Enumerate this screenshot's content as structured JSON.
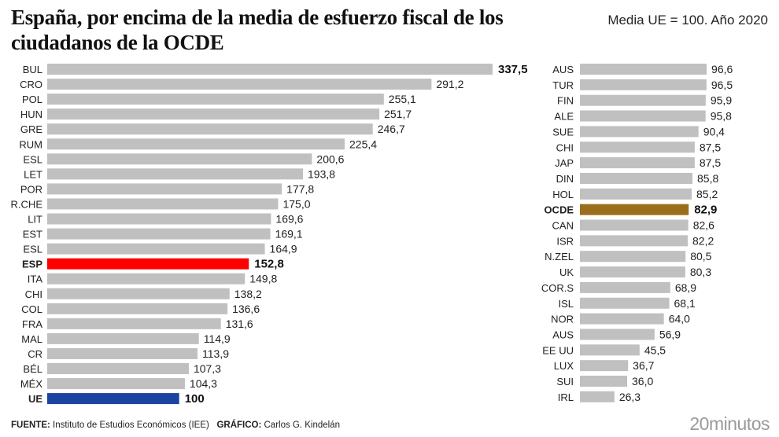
{
  "header": {
    "title": "España, por encima de la media de esfuerzo fiscal de los ciudadanos de la OCDE",
    "subtitle": "Media UE = 100. Año 2020"
  },
  "footer": {
    "source_label": "FUENTE:",
    "source_text": "Instituto de Estudios Económicos (IEE)",
    "graphic_label": "GRÁFICO:",
    "graphic_text": "Carlos G. Kindelán",
    "brand": "20minutos"
  },
  "colors": {
    "default_bar": "#c0c0c0",
    "highlight_esp": "#ff0000",
    "highlight_ue": "#1a44a0",
    "highlight_ocde": "#9a6e1a"
  },
  "chart_data": {
    "type": "bar",
    "orientation": "horizontal",
    "title": "España, por encima de la media de esfuerzo fiscal de los ciudadanos de la OCDE",
    "subtitle": "Media UE = 100. Año 2020",
    "xlabel": "",
    "ylabel": "",
    "xlim": [
      0,
      337.5
    ],
    "grid": false,
    "panels": [
      {
        "name": "left",
        "categories": [
          "BUL",
          "CRO",
          "POL",
          "HUN",
          "GRE",
          "RUM",
          "ESL",
          "LET",
          "POR",
          "R.CHE",
          "LIT",
          "EST",
          "ESL",
          "ESP",
          "ITA",
          "CHI",
          "COL",
          "FRA",
          "MAL",
          "CR",
          "BÉL",
          "MÉX",
          "UE"
        ],
        "values": [
          337.5,
          291.2,
          255.1,
          251.7,
          246.7,
          225.4,
          200.6,
          193.8,
          177.8,
          175.0,
          169.6,
          169.1,
          164.9,
          152.8,
          149.8,
          138.2,
          136.6,
          131.6,
          114.9,
          113.9,
          107.3,
          104.3,
          100
        ],
        "value_labels": [
          "337,5",
          "291,2",
          "255,1",
          "251,7",
          "246,7",
          "225,4",
          "200,6",
          "193,8",
          "177,8",
          "175,0",
          "169,6",
          "169,1",
          "164,9",
          "152,8",
          "149,8",
          "138,2",
          "136,6",
          "131,6",
          "114,9",
          "113,9",
          "107,3",
          "104,3",
          "100"
        ],
        "highlights": {
          "BUL": "bold-label",
          "ESP": "esp",
          "UE": "ue"
        }
      },
      {
        "name": "right",
        "categories": [
          "AUS",
          "TUR",
          "FIN",
          "ALE",
          "SUE",
          "CHI",
          "JAP",
          "DIN",
          "HOL",
          "OCDE",
          "CAN",
          "ISR",
          "N.ZEL",
          "UK",
          "COR.S",
          "ISL",
          "NOR",
          "AUS",
          "EE UU",
          "LUX",
          "SUI",
          "IRL"
        ],
        "values": [
          96.6,
          96.5,
          95.9,
          95.8,
          90.4,
          87.5,
          87.5,
          85.8,
          85.2,
          82.9,
          82.6,
          82.2,
          80.5,
          80.3,
          68.9,
          68.1,
          64.0,
          56.9,
          45.5,
          36.7,
          36.0,
          26.3
        ],
        "value_labels": [
          "96,6",
          "96,5",
          "95,9",
          "95,8",
          "90,4",
          "87,5",
          "87,5",
          "85,8",
          "85,2",
          "82,9",
          "82,6",
          "82,2",
          "80,5",
          "80,3",
          "68,9",
          "68,1",
          "64,0",
          "56,9",
          "45,5",
          "36,7",
          "36,0",
          "26,3"
        ],
        "highlights": {
          "OCDE": "ocde"
        }
      }
    ]
  }
}
